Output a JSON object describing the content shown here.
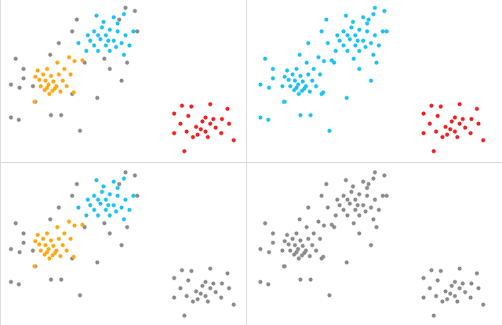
{
  "chart_data": [
    {
      "type": "scatter",
      "xlim": [
        0,
        313
      ],
      "ylim": [
        205,
        0
      ],
      "series": [
        {
          "color": "#8c8c8c",
          "x": [
            98,
            160,
            172,
            152,
            92,
            75,
            64,
            20,
            30,
            14,
            25,
            42,
            92,
            124,
            45,
            14,
            24,
            65,
            78,
            102,
            155,
            175,
            162,
            133,
            108,
            30,
            140
          ],
          "y": [
            25,
            10,
            14,
            25,
            40,
            55,
            70,
            75,
            88,
            108,
            112,
            110,
            120,
            125,
            130,
            150,
            153,
            147,
            147,
            167,
            103,
            40,
            80,
            75,
            80,
            100,
            88
          ]
        },
        {
          "color": "#ffa814",
          "x": [
            88,
            95,
            73,
            105,
            48,
            60,
            82,
            45,
            55,
            65,
            75,
            50,
            58,
            68,
            80,
            62,
            72,
            52,
            85,
            57,
            67,
            77,
            63,
            94,
            44,
            70,
            60,
            90
          ],
          "y": [
            73,
            78,
            80,
            77,
            90,
            88,
            88,
            98,
            95,
            97,
            95,
            102,
            103,
            104,
            103,
            108,
            110,
            110,
            110,
            115,
            116,
            117,
            120,
            118,
            130,
            113,
            112,
            95
          ]
        },
        {
          "color": "#1ec3f0",
          "x": [
            123,
            145,
            158,
            130,
            140,
            120,
            150,
            112,
            125,
            135,
            160,
            115,
            128,
            145,
            155,
            120,
            135,
            148,
            125,
            140,
            158,
            110,
            100,
            170,
            132,
            150,
            138,
            165
          ],
          "y": [
            20,
            22,
            18,
            35,
            38,
            40,
            40,
            45,
            45,
            45,
            45,
            52,
            50,
            52,
            55,
            58,
            58,
            60,
            65,
            65,
            70,
            65,
            55,
            40,
            28,
            30,
            52,
            58
          ]
        },
        {
          "color": "#ee2424",
          "x": [
            232,
            244,
            268,
            290,
            222,
            240,
            262,
            283,
            258,
            230,
            268,
            292,
            250,
            275,
            238,
            262,
            282,
            222,
            252,
            265,
            246,
            298,
            235,
            256,
            272
          ],
          "y": [
            135,
            136,
            133,
            139,
            145,
            148,
            150,
            152,
            155,
            158,
            158,
            158,
            162,
            163,
            168,
            168,
            170,
            170,
            172,
            175,
            175,
            179,
            193,
            165,
            152
          ]
        }
      ]
    },
    {
      "type": "scatter",
      "xlim": [
        0,
        313
      ],
      "ylim": [
        205,
        0
      ],
      "series": [
        {
          "color": "#1ec3f0",
          "x": [
            98,
            160,
            172,
            152,
            92,
            75,
            64,
            20,
            30,
            14,
            25,
            42,
            92,
            124,
            45,
            14,
            24,
            65,
            78,
            102,
            155,
            175,
            162,
            133,
            108,
            30,
            140,
            88,
            95,
            73,
            105,
            48,
            60,
            82,
            45,
            55,
            65,
            75,
            50,
            58,
            68,
            80,
            62,
            72,
            52,
            85,
            57,
            67,
            77,
            63,
            94,
            44,
            70,
            60,
            90,
            123,
            145,
            158,
            130,
            140,
            120,
            150,
            112,
            125,
            135,
            160,
            115,
            128,
            145,
            155,
            120,
            135,
            148,
            125,
            140,
            158,
            110,
            100,
            170,
            132,
            150,
            138,
            165
          ],
          "y": [
            25,
            10,
            14,
            25,
            40,
            55,
            70,
            75,
            88,
            108,
            112,
            110,
            120,
            125,
            130,
            150,
            153,
            147,
            147,
            167,
            103,
            40,
            80,
            75,
            80,
            100,
            88,
            73,
            78,
            80,
            77,
            90,
            88,
            88,
            98,
            95,
            97,
            95,
            102,
            103,
            104,
            103,
            108,
            110,
            110,
            110,
            115,
            116,
            117,
            120,
            118,
            130,
            113,
            112,
            95,
            20,
            22,
            18,
            35,
            38,
            40,
            40,
            45,
            45,
            45,
            45,
            52,
            50,
            52,
            55,
            58,
            58,
            60,
            65,
            65,
            70,
            65,
            55,
            40,
            28,
            30,
            52,
            58
          ]
        },
        {
          "color": "#ee2424",
          "x": [
            232,
            244,
            268,
            290,
            222,
            240,
            262,
            283,
            258,
            230,
            268,
            292,
            250,
            275,
            238,
            262,
            282,
            222,
            252,
            265,
            246,
            298,
            235,
            256,
            272
          ],
          "y": [
            135,
            136,
            133,
            139,
            145,
            148,
            150,
            152,
            155,
            158,
            158,
            158,
            162,
            163,
            168,
            168,
            170,
            170,
            172,
            175,
            175,
            179,
            193,
            165,
            152
          ]
        }
      ]
    },
    {
      "type": "scatter",
      "xlim": [
        0,
        313
      ],
      "ylim": [
        205,
        0
      ],
      "series": [
        {
          "color": "#8c8c8c",
          "x": [
            98,
            160,
            172,
            152,
            92,
            75,
            64,
            20,
            30,
            14,
            25,
            42,
            92,
            124,
            45,
            14,
            24,
            65,
            78,
            102,
            155,
            175,
            162,
            133,
            108,
            30,
            140,
            232,
            244,
            268,
            290,
            222,
            240,
            262,
            283,
            258,
            230,
            268,
            292,
            250,
            275,
            238,
            262,
            282,
            222,
            252,
            265,
            246,
            298,
            235,
            256,
            272
          ],
          "y": [
            25,
            10,
            14,
            25,
            40,
            55,
            70,
            75,
            88,
            108,
            112,
            110,
            120,
            125,
            130,
            150,
            153,
            147,
            147,
            167,
            103,
            40,
            80,
            75,
            80,
            100,
            88,
            135,
            136,
            133,
            139,
            145,
            148,
            150,
            152,
            155,
            158,
            158,
            158,
            162,
            163,
            168,
            168,
            170,
            170,
            172,
            175,
            175,
            179,
            193,
            165,
            152
          ]
        },
        {
          "color": "#ffa814",
          "x": [
            88,
            95,
            73,
            105,
            48,
            60,
            82,
            45,
            55,
            65,
            75,
            50,
            58,
            68,
            80,
            62,
            72,
            52,
            85,
            57,
            67,
            77,
            63,
            94,
            44,
            70,
            60,
            90
          ],
          "y": [
            73,
            78,
            80,
            77,
            90,
            88,
            88,
            98,
            95,
            97,
            95,
            102,
            103,
            104,
            103,
            108,
            110,
            110,
            110,
            115,
            116,
            117,
            120,
            118,
            130,
            113,
            112,
            95
          ]
        },
        {
          "color": "#1ec3f0",
          "x": [
            123,
            145,
            158,
            130,
            140,
            120,
            150,
            112,
            125,
            135,
            160,
            115,
            128,
            145,
            155,
            120,
            135,
            148,
            125,
            140,
            158,
            110,
            100,
            170,
            132,
            150,
            138,
            165
          ],
          "y": [
            20,
            22,
            18,
            35,
            38,
            40,
            40,
            45,
            45,
            45,
            45,
            52,
            50,
            52,
            55,
            58,
            58,
            60,
            65,
            65,
            70,
            65,
            55,
            40,
            28,
            30,
            52,
            58
          ]
        }
      ]
    },
    {
      "type": "scatter",
      "xlim": [
        0,
        313
      ],
      "ylim": [
        205,
        0
      ],
      "series": [
        {
          "color": "#8c8c8c",
          "x": [
            98,
            160,
            172,
            152,
            92,
            75,
            64,
            20,
            30,
            14,
            25,
            42,
            92,
            124,
            45,
            14,
            24,
            65,
            78,
            102,
            155,
            175,
            162,
            133,
            108,
            30,
            140,
            88,
            95,
            73,
            105,
            48,
            60,
            82,
            45,
            55,
            65,
            75,
            50,
            58,
            68,
            80,
            62,
            72,
            52,
            85,
            57,
            67,
            77,
            63,
            94,
            44,
            70,
            60,
            90,
            123,
            145,
            158,
            130,
            140,
            120,
            150,
            112,
            125,
            135,
            160,
            115,
            128,
            145,
            155,
            120,
            135,
            148,
            125,
            140,
            158,
            110,
            100,
            170,
            132,
            150,
            138,
            165,
            232,
            244,
            268,
            290,
            222,
            240,
            262,
            283,
            258,
            230,
            268,
            292,
            250,
            275,
            238,
            262,
            282,
            222,
            252,
            265,
            246,
            298,
            235,
            256,
            272
          ],
          "y": [
            25,
            10,
            14,
            25,
            40,
            55,
            70,
            75,
            88,
            108,
            112,
            110,
            120,
            125,
            130,
            150,
            153,
            147,
            147,
            167,
            103,
            40,
            80,
            75,
            80,
            100,
            88,
            73,
            78,
            80,
            77,
            90,
            88,
            88,
            98,
            95,
            97,
            95,
            102,
            103,
            104,
            103,
            108,
            110,
            110,
            110,
            115,
            116,
            117,
            120,
            118,
            130,
            113,
            112,
            95,
            20,
            22,
            18,
            35,
            38,
            40,
            40,
            45,
            45,
            45,
            45,
            52,
            50,
            52,
            55,
            58,
            58,
            60,
            65,
            65,
            70,
            65,
            55,
            40,
            28,
            30,
            52,
            58,
            135,
            136,
            133,
            139,
            145,
            148,
            150,
            152,
            155,
            158,
            158,
            158,
            162,
            163,
            168,
            168,
            170,
            170,
            172,
            175,
            175,
            179,
            193,
            165,
            152
          ]
        }
      ]
    }
  ]
}
